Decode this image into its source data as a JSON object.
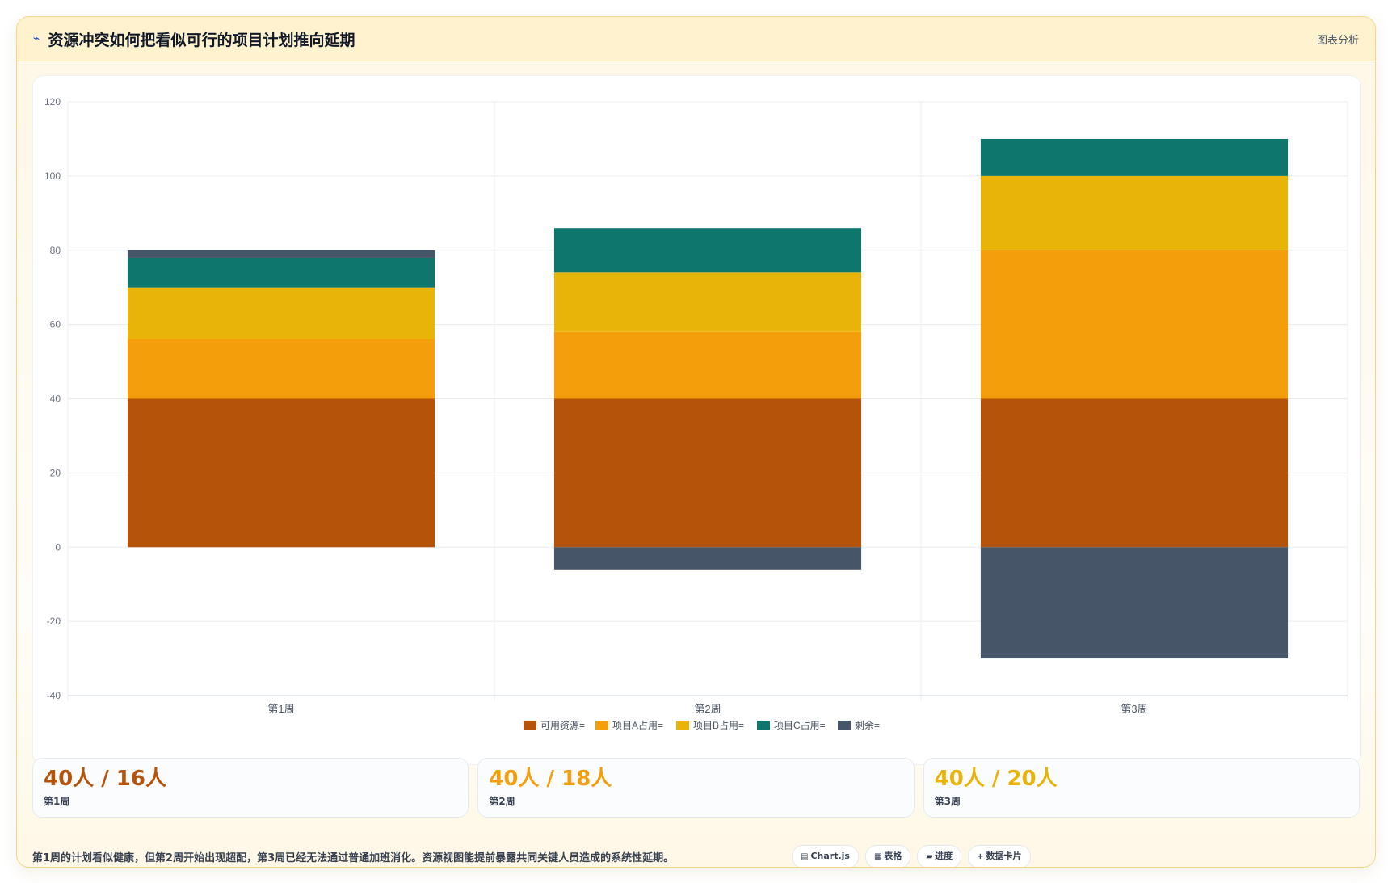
{
  "header": {
    "icon": "chart-line-icon",
    "title": "资源冲突如何把看似可行的项目计划推向延期",
    "tag": "图表分析"
  },
  "chart_data": {
    "type": "bar",
    "stacked": true,
    "categories": [
      "第1周",
      "第2周",
      "第3周"
    ],
    "series": [
      {
        "name": "可用资源=",
        "color": "#b5530a",
        "values": [
          40,
          40,
          40
        ]
      },
      {
        "name": "项目A占用=",
        "color": "#f59e0b",
        "values": [
          16,
          18,
          40
        ]
      },
      {
        "name": "项目B占用=",
        "color": "#e8b40a",
        "values": [
          14,
          16,
          20
        ]
      },
      {
        "name": "项目C占用=",
        "color": "#0f766e",
        "values": [
          8,
          12,
          10
        ]
      },
      {
        "name": "剩余=",
        "color": "#475569",
        "values": [
          2,
          -6,
          -30
        ]
      }
    ],
    "ylim": [
      -40,
      120
    ],
    "yticks": [
      "120",
      "100",
      "80",
      "60",
      "40",
      "20",
      "0",
      "-20",
      "-40"
    ],
    "grid": true,
    "legend": "bottom"
  },
  "stats": [
    {
      "value": "40人 / 16人",
      "label": "第1周",
      "color": "#b5530a"
    },
    {
      "value": "40人 / 18人",
      "label": "第2周",
      "color": "#f59e0b"
    },
    {
      "value": "40人 / 20人",
      "label": "第3周",
      "color": "#e8b40a"
    }
  ],
  "footer": {
    "note": "第1周的计划看似健康，但第2周开始出现超配，第3周已经无法通过普通加班消化。资源视图能提前暴露共同关键人员造成的系统性延期。",
    "chips": [
      {
        "icon": "▤",
        "label": "Chart.js"
      },
      {
        "icon": "▦",
        "label": "表格"
      },
      {
        "icon": "▰",
        "label": "进度"
      },
      {
        "icon": "+",
        "label": "数据卡片"
      }
    ]
  }
}
